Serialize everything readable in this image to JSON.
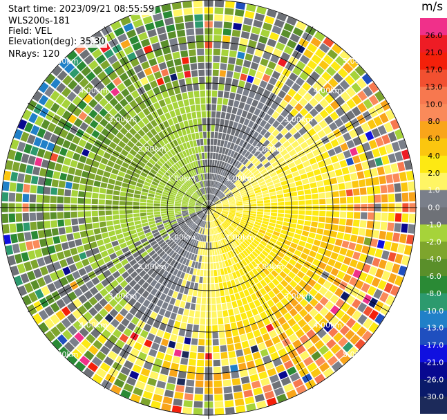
{
  "header": {
    "start_time": "Start time: 2023/09/21 08:55:59",
    "instrument": "WLS200s-181",
    "field": "Field: VEL",
    "elevation": "Elevation(deg): 35.30",
    "nrays": "NRays: 120"
  },
  "colorbar": {
    "unit": "m/s",
    "ticks": [
      "26.0",
      "21.0",
      "17.0",
      "13.0",
      "10.0",
      "8.0",
      "6.0",
      "4.0",
      "2.0",
      "1.0",
      "0.0",
      "-1.0",
      "-2.0",
      "-4.0",
      "-6.0",
      "-8.0",
      "-10.0",
      "-13.0",
      "-17.0",
      "-21.0",
      "-26.0",
      "-30.0"
    ],
    "colors": [
      "#f0308a",
      "#ee1c25",
      "#f4200a",
      "#f25030",
      "#f7784f",
      "#fa8a5a",
      "#f9a51a",
      "#fbc60f",
      "#fde913",
      "#fff564",
      "#7a7f8a",
      "#6e7177",
      "#a6d33a",
      "#7ea52d",
      "#5a8f2a",
      "#2a8a35",
      "#2c9a6e",
      "#2080c8",
      "#1f4fbf",
      "#1010e0",
      "#080890",
      "#0a1a6a",
      "#1c2a5a"
    ]
  },
  "chart_data": {
    "type": "ppi",
    "field": "VEL",
    "units": "m/s",
    "range_rings_km": [
      1,
      2,
      3,
      4,
      5
    ],
    "ring_labels": [
      "1.00km",
      "2.00km",
      "3.00km",
      "4.00km",
      "5.00km"
    ],
    "nrays": 120,
    "vmin": -30,
    "vmax": 26,
    "pattern": "dipole: approaching (negative) to the W/NW, receding (positive) to the E/SE"
  }
}
